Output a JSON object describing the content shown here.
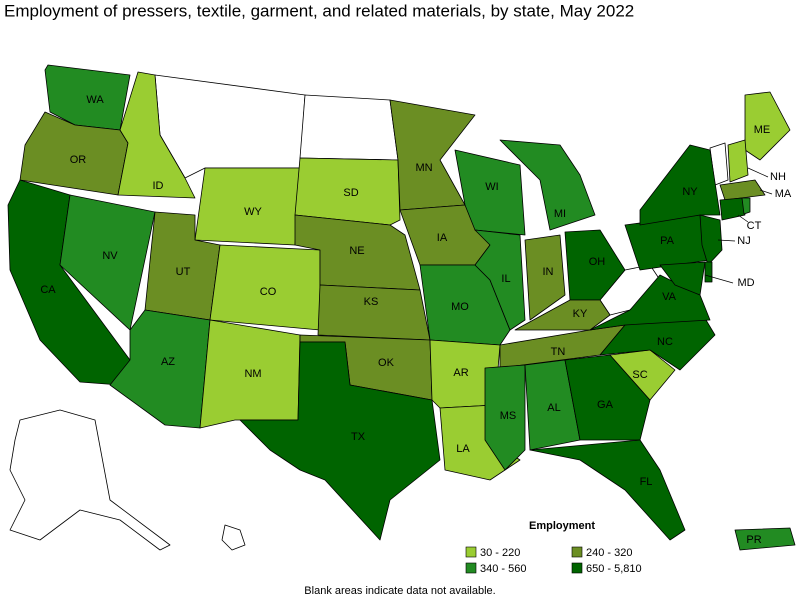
{
  "title": "Employment of pressers, textile, garment, and related materials, by state, May 2022",
  "legend": {
    "title": "Employment",
    "classes": [
      {
        "label": "30 - 220",
        "color": "#9acd32"
      },
      {
        "label": "240 - 320",
        "color": "#6b8e23"
      },
      {
        "label": "340 - 560",
        "color": "#228b22"
      },
      {
        "label": "650 - 5,810",
        "color": "#006400"
      }
    ]
  },
  "states": [
    {
      "label": "WA",
      "color": "#228b22"
    },
    {
      "label": "OR",
      "color": "#6b8e23"
    },
    {
      "label": "CA",
      "color": "#006400"
    },
    {
      "label": "NV",
      "color": "#228b22"
    },
    {
      "label": "ID",
      "color": "#9acd32"
    },
    {
      "label": "WY",
      "color": "#9acd32"
    },
    {
      "label": "UT",
      "color": "#6b8e23"
    },
    {
      "label": "AZ",
      "color": "#228b22"
    },
    {
      "label": "CO",
      "color": "#9acd32"
    },
    {
      "label": "NM",
      "color": "#9acd32"
    },
    {
      "label": "SD",
      "color": "#9acd32"
    },
    {
      "label": "NE",
      "color": "#6b8e23"
    },
    {
      "label": "KS",
      "color": "#6b8e23"
    },
    {
      "label": "OK",
      "color": "#6b8e23"
    },
    {
      "label": "TX",
      "color": "#006400"
    },
    {
      "label": "MN",
      "color": "#6b8e23"
    },
    {
      "label": "IA",
      "color": "#6b8e23"
    },
    {
      "label": "MO",
      "color": "#228b22"
    },
    {
      "label": "AR",
      "color": "#9acd32"
    },
    {
      "label": "LA",
      "color": "#9acd32"
    },
    {
      "label": "WI",
      "color": "#228b22"
    },
    {
      "label": "MI",
      "color": "#228b22"
    },
    {
      "label": "IL",
      "color": "#228b22"
    },
    {
      "label": "IN",
      "color": "#6b8e23"
    },
    {
      "label": "OH",
      "color": "#006400"
    },
    {
      "label": "KY",
      "color": "#6b8e23"
    },
    {
      "label": "TN",
      "color": "#6b8e23"
    },
    {
      "label": "MS",
      "color": "#228b22"
    },
    {
      "label": "AL",
      "color": "#228b22"
    },
    {
      "label": "GA",
      "color": "#006400"
    },
    {
      "label": "FL",
      "color": "#006400"
    },
    {
      "label": "SC",
      "color": "#9acd32"
    },
    {
      "label": "NC",
      "color": "#006400"
    },
    {
      "label": "VA",
      "color": "#006400"
    },
    {
      "label": "PA",
      "color": "#006400"
    },
    {
      "label": "NY",
      "color": "#006400"
    },
    {
      "label": "ME",
      "color": "#9acd32"
    },
    {
      "label": "NH",
      "color": "#9acd32"
    },
    {
      "label": "MA",
      "color": "#6b8e23"
    },
    {
      "label": "CT",
      "color": "#006400"
    },
    {
      "label": "NJ",
      "color": "#006400"
    },
    {
      "label": "MD",
      "color": "#006400"
    },
    {
      "label": "PR",
      "color": "#228b22"
    }
  ],
  "footnote": "Blank areas indicate data not available."
}
